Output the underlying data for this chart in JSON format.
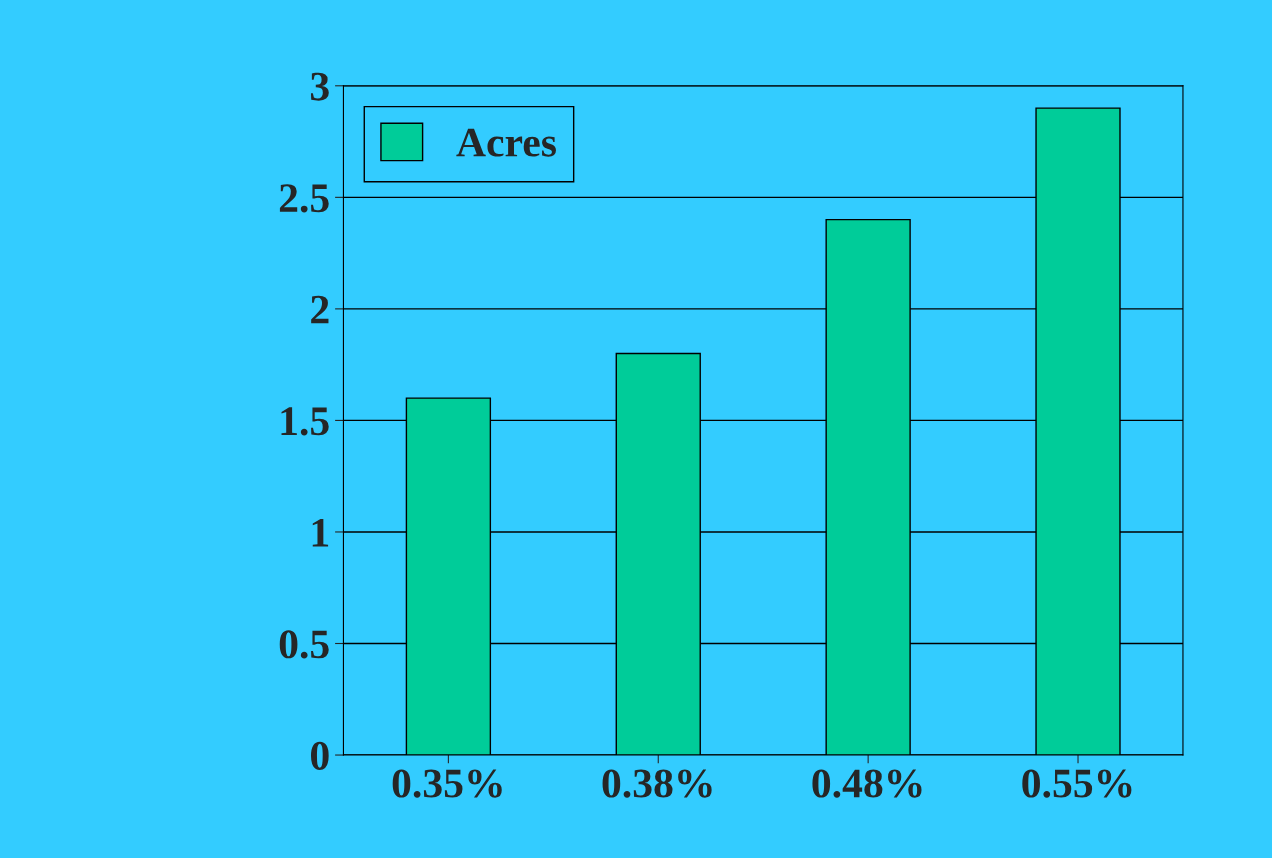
{
  "chart_data": {
    "type": "bar",
    "categories": [
      "0.35%",
      "0.38%",
      "0.48%",
      "0.55%"
    ],
    "series": [
      {
        "name": "Acres",
        "color": "#00cc99",
        "values": [
          1.6,
          1.8,
          2.4,
          2.9
        ]
      }
    ],
    "ylim": [
      0,
      3
    ],
    "yticks": [
      0,
      0.5,
      1,
      1.5,
      2,
      2.5,
      3
    ],
    "grid": "y",
    "legend": "top left"
  }
}
